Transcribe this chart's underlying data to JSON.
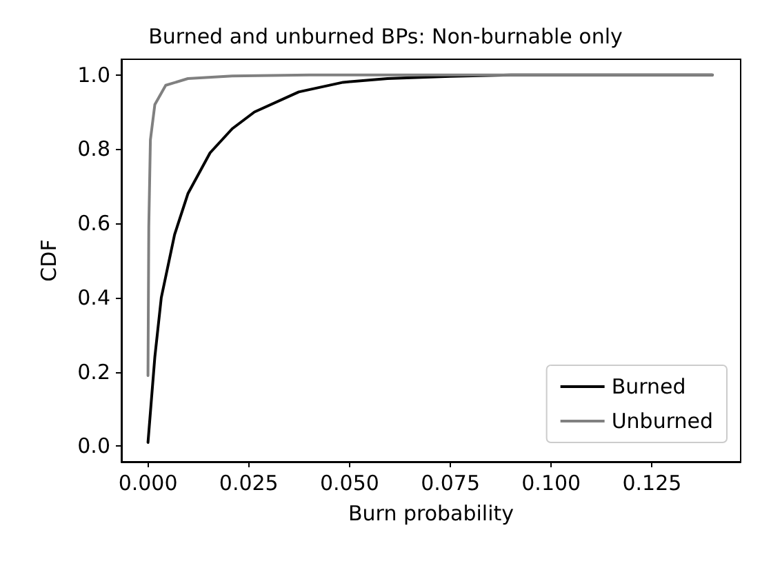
{
  "chart_data": {
    "type": "line",
    "title": "Burned and unburned BPs: Non-burnable only",
    "xlabel": "Burn probability",
    "ylabel": "CDF",
    "xlim": [
      -0.0066,
      0.147
    ],
    "ylim": [
      -0.042,
      1.042
    ],
    "xticks": [
      {
        "value": 0,
        "label": "0.000"
      },
      {
        "value": 0.025,
        "label": "0.025"
      },
      {
        "value": 0.05,
        "label": "0.050"
      },
      {
        "value": 0.075,
        "label": "0.075"
      },
      {
        "value": 0.1,
        "label": "0.100"
      },
      {
        "value": 0.125,
        "label": "0.125"
      }
    ],
    "yticks": [
      {
        "value": 0,
        "label": "0.0"
      },
      {
        "value": 0.2,
        "label": "0.2"
      },
      {
        "value": 0.4,
        "label": "0.4"
      },
      {
        "value": 0.6,
        "label": "0.6"
      },
      {
        "value": 0.8,
        "label": "0.8"
      },
      {
        "value": 1,
        "label": "1.0"
      }
    ],
    "grid": false,
    "legend": "bottom right",
    "marker": "none",
    "line_style": "solid",
    "series": [
      {
        "name": "Burned",
        "color": "#000000",
        "x": [
          0,
          0.0017,
          0.0033,
          0.0066,
          0.0099,
          0.0154,
          0.0209,
          0.0264,
          0.0374,
          0.0484,
          0.0594,
          0.075,
          0.09,
          0.14
        ],
        "values": [
          0.01,
          0.24,
          0.4,
          0.57,
          0.68,
          0.79,
          0.855,
          0.9,
          0.954,
          0.98,
          0.99,
          0.996,
          1,
          1
        ]
      },
      {
        "name": "Unburned",
        "color": "#808080",
        "x": [
          0,
          0.0002,
          0.0006,
          0.0017,
          0.0044,
          0.0099,
          0.0209,
          0.04,
          0.14
        ],
        "values": [
          0.19,
          0.59,
          0.825,
          0.92,
          0.972,
          0.99,
          0.997,
          1,
          1
        ]
      }
    ]
  }
}
